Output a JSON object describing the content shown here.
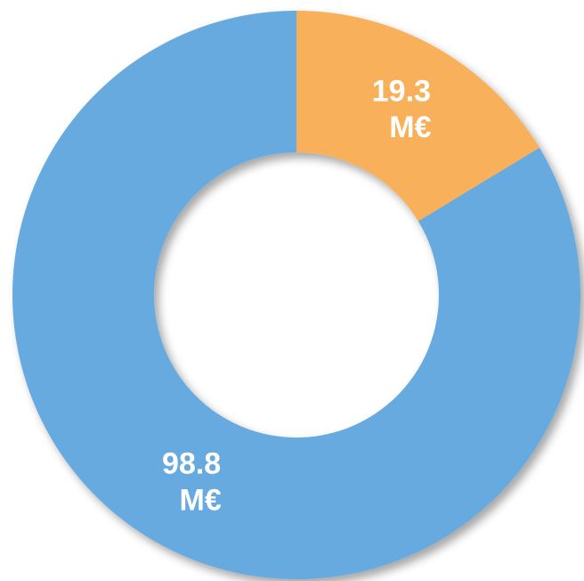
{
  "chart_data": {
    "type": "donut",
    "values": [
      19.3,
      98.8
    ],
    "value_labels": [
      "19.3 M€",
      "98.8 M€"
    ],
    "colors": [
      "#f8b15a",
      "#66aae0"
    ]
  }
}
